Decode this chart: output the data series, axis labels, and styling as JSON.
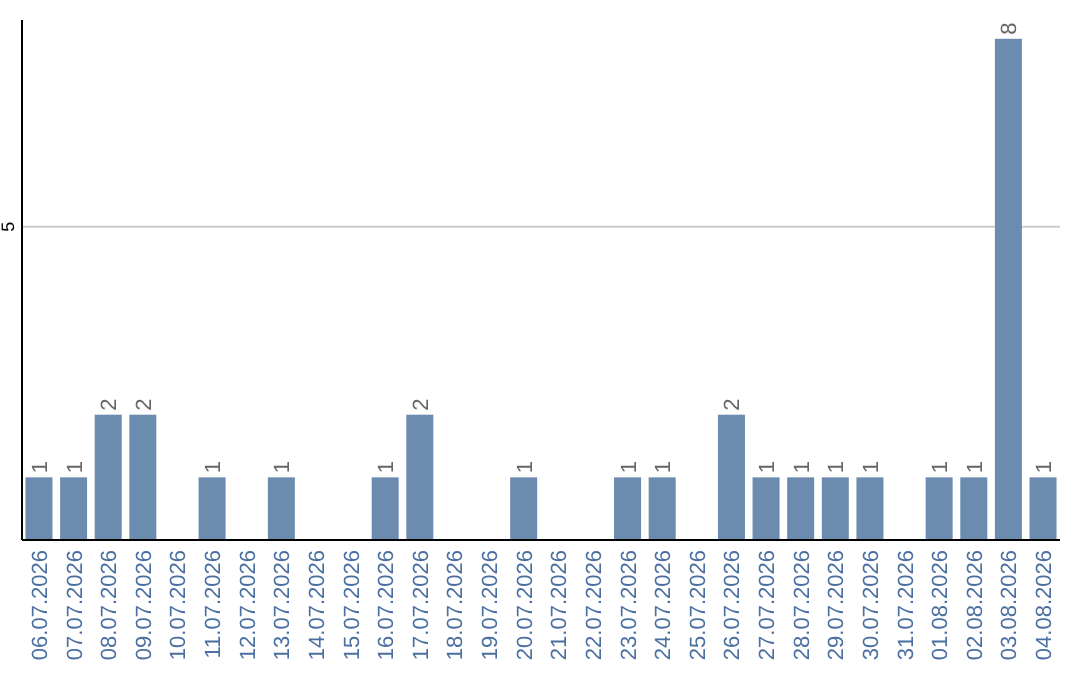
{
  "chart_data": {
    "type": "bar",
    "categories": [
      "06.07.2026",
      "07.07.2026",
      "08.07.2026",
      "09.07.2026",
      "10.07.2026",
      "11.07.2026",
      "12.07.2026",
      "13.07.2026",
      "14.07.2026",
      "15.07.2026",
      "16.07.2026",
      "17.07.2026",
      "18.07.2026",
      "19.07.2026",
      "20.07.2026",
      "21.07.2026",
      "22.07.2026",
      "23.07.2026",
      "24.07.2026",
      "25.07.2026",
      "26.07.2026",
      "27.07.2026",
      "28.07.2026",
      "29.07.2026",
      "30.07.2026",
      "31.07.2026",
      "01.08.2026",
      "02.08.2026",
      "03.08.2026",
      "04.08.2026"
    ],
    "values": [
      1,
      1,
      2,
      2,
      null,
      1,
      null,
      1,
      null,
      null,
      1,
      2,
      null,
      null,
      1,
      null,
      null,
      1,
      1,
      null,
      2,
      1,
      1,
      1,
      1,
      null,
      1,
      1,
      8,
      1
    ],
    "color": "#6b8cae",
    "ylim": [
      0,
      8.3
    ],
    "yticks": [
      5
    ],
    "grid": "y",
    "data_labels": true
  }
}
